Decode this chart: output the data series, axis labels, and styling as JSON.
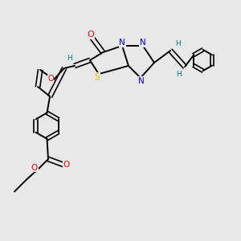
{
  "background_color": "#e8e8e8",
  "bond_color": "#000000",
  "atom_colors": {
    "N": "#0000ff",
    "O": "#ff0000",
    "S": "#cccc00",
    "H_vinyl": "#008080",
    "C": "#000000"
  },
  "figsize": [
    3.0,
    3.0
  ],
  "dpi": 100,
  "xlim": [
    0,
    10
  ],
  "ylim": [
    0,
    10
  ]
}
